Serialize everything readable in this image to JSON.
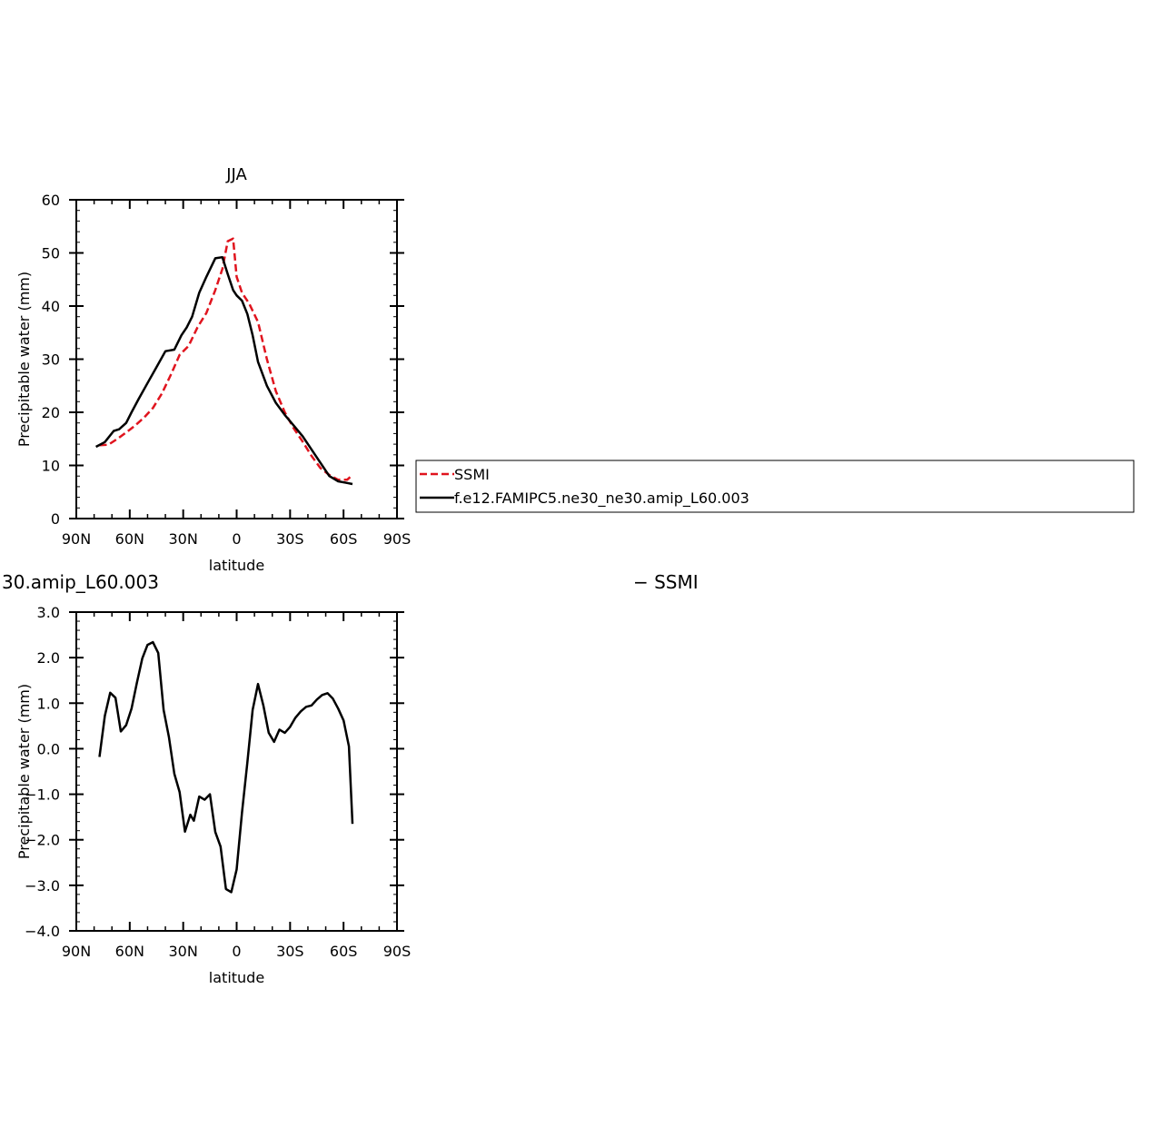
{
  "chart_data": [
    {
      "type": "line",
      "title": "JJA",
      "xlabel": "latitude",
      "ylabel": "Precipitable water (mm)",
      "xlim": [
        90,
        -90
      ],
      "ylim": [
        0,
        60
      ],
      "x_ticks": [
        90,
        60,
        30,
        0,
        -30,
        -60,
        -90
      ],
      "x_tick_labels": [
        "90N",
        "60N",
        "30N",
        "0",
        "30S",
        "60S",
        "90S"
      ],
      "y_ticks": [
        0,
        10,
        20,
        30,
        40,
        50,
        60
      ],
      "y_tick_labels": [
        "0",
        "10",
        "20",
        "30",
        "40",
        "50",
        "60"
      ],
      "grid": false,
      "legend_position": "right",
      "series": [
        {
          "name": "SSMI",
          "color": "#e0141e",
          "dash": "dashed",
          "x": [
            77,
            72,
            67,
            62,
            57,
            52,
            47,
            42,
            37,
            32,
            27,
            22,
            17,
            12,
            8,
            5,
            2,
            0,
            -3,
            -7,
            -12,
            -17,
            -22,
            -27,
            -32,
            -37,
            -42,
            -47,
            -52,
            -57,
            -62,
            -65
          ],
          "y": [
            13.8,
            13.9,
            15.0,
            16.2,
            17.5,
            19.0,
            20.8,
            23.5,
            27.0,
            30.8,
            32.5,
            36.0,
            38.7,
            43.0,
            47.0,
            52.2,
            52.7,
            45.5,
            42.5,
            40.5,
            37.0,
            30.0,
            24.0,
            20.0,
            17.0,
            14.5,
            11.8,
            9.5,
            8.2,
            7.3,
            7.3,
            8.2
          ]
        },
        {
          "name": "f.e12.FAMIPC5.ne30_ne30.amip_L60.003",
          "color": "#000000",
          "dash": "solid",
          "x": [
            79,
            74,
            69,
            66,
            62,
            59,
            55,
            50,
            45,
            40,
            35,
            31,
            28,
            25,
            21,
            17,
            12,
            8,
            5,
            2,
            0,
            -3,
            -6,
            -9,
            -12,
            -17,
            -22,
            -27,
            -32,
            -37,
            -42,
            -47,
            -52,
            -57,
            -62,
            -65
          ],
          "y": [
            13.5,
            14.4,
            16.5,
            16.8,
            18.0,
            20.0,
            22.5,
            25.5,
            28.5,
            31.5,
            31.8,
            34.5,
            36.0,
            38.0,
            42.5,
            45.5,
            49.0,
            49.2,
            46.0,
            43.0,
            42.0,
            41.0,
            38.5,
            34.5,
            29.5,
            25.0,
            21.8,
            19.5,
            17.5,
            15.5,
            13.0,
            10.5,
            8.0,
            7.0,
            6.7,
            6.5
          ]
        }
      ]
    },
    {
      "type": "line",
      "title": "",
      "xlabel": "latitude",
      "ylabel": "Precipitable water (mm)",
      "xlim": [
        90,
        -90
      ],
      "ylim": [
        -4.0,
        3.0
      ],
      "x_ticks": [
        90,
        60,
        30,
        0,
        -30,
        -60,
        -90
      ],
      "x_tick_labels": [
        "90N",
        "60N",
        "30N",
        "0",
        "30S",
        "60S",
        "90S"
      ],
      "y_ticks": [
        3.0,
        2.0,
        1.0,
        0.0,
        -1.0,
        -2.0,
        -3.0,
        -4.0
      ],
      "y_tick_labels": [
        "3.0",
        "2.0",
        "1.0",
        "0.0",
        "−1.0",
        "−2.0",
        "−3.0",
        "−4.0"
      ],
      "grid": false,
      "series": [
        {
          "color": "#000000",
          "dash": "solid",
          "x": [
            77,
            74,
            71,
            68,
            65,
            62,
            59,
            56,
            53,
            50,
            47,
            44,
            41,
            38,
            35,
            32,
            29,
            26,
            24,
            21,
            18,
            15,
            12,
            9,
            6,
            3,
            0,
            -3,
            -6,
            -9,
            -12,
            -15,
            -18,
            -21,
            -24,
            -27,
            -30,
            -33,
            -36,
            -39,
            -42,
            -45,
            -48,
            -51,
            -54,
            -57,
            -60,
            -63,
            -65
          ],
          "y": [
            -0.18,
            0.72,
            1.23,
            1.12,
            0.38,
            0.52,
            0.88,
            1.45,
            1.98,
            2.28,
            2.34,
            2.1,
            0.85,
            0.25,
            -0.55,
            -0.95,
            -1.82,
            -1.45,
            -1.58,
            -1.05,
            -1.12,
            -1.0,
            -1.83,
            -2.15,
            -3.08,
            -3.15,
            -2.65,
            -1.4,
            -0.3,
            0.85,
            1.42,
            0.95,
            0.35,
            0.15,
            0.42,
            0.35,
            0.48,
            0.68,
            0.82,
            0.92,
            0.95,
            1.08,
            1.18,
            1.22,
            1.1,
            0.88,
            0.62,
            0.05,
            -1.65
          ]
        }
      ]
    }
  ],
  "fragments": {
    "clipped_title": "30.amip_L60.003",
    "clipped_legend": "− SSMI"
  }
}
